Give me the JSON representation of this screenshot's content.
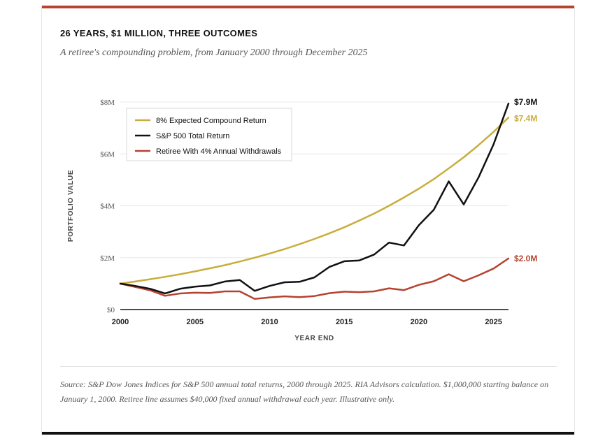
{
  "header": {
    "title": "26 YEARS, $1 MILLION, THREE OUTCOMES",
    "subtitle": "A retiree's compounding problem, from January 2000 through December 2025"
  },
  "footer": {
    "source": "Source: S&P Dow Jones Indices for S&P 500 annual total returns, 2000 through 2025. RIA Advisors calculation. $1,000,000 starting balance on January 1, 2000. Retiree line assumes $40,000 fixed annual withdrawal each year. Illustrative only."
  },
  "chart_data": {
    "type": "line",
    "title": "26 YEARS, $1 MILLION, THREE OUTCOMES",
    "subtitle": "A retiree's compounding problem, from January 2000 through December 2025",
    "xlabel": "YEAR END",
    "ylabel": "PORTFOLIO VALUE",
    "xlim": [
      2000,
      2026
    ],
    "ylim": [
      0,
      8
    ],
    "x_ticks": [
      2000,
      2005,
      2010,
      2015,
      2020,
      2025
    ],
    "y_ticks": [
      {
        "value": 0,
        "label": "$0"
      },
      {
        "value": 2,
        "label": "$2M"
      },
      {
        "value": 4,
        "label": "$4M"
      },
      {
        "value": 6,
        "label": "$6M"
      },
      {
        "value": 8,
        "label": "$8M"
      }
    ],
    "grid": "horizontal",
    "legend_position": "top-left",
    "x": [
      2000,
      2001,
      2002,
      2003,
      2004,
      2005,
      2006,
      2007,
      2008,
      2009,
      2010,
      2011,
      2012,
      2013,
      2014,
      2015,
      2016,
      2017,
      2018,
      2019,
      2020,
      2021,
      2022,
      2023,
      2024,
      2025,
      2026
    ],
    "series": [
      {
        "name": "8% Expected Compound Return",
        "color": "#c9ad3c",
        "end_label": "$7.4M",
        "values": [
          1.0,
          1.08,
          1.17,
          1.26,
          1.36,
          1.47,
          1.59,
          1.71,
          1.85,
          2.0,
          2.16,
          2.33,
          2.52,
          2.72,
          2.94,
          3.17,
          3.43,
          3.7,
          4.0,
          4.32,
          4.66,
          5.03,
          5.44,
          5.87,
          6.34,
          6.85,
          7.4
        ]
      },
      {
        "name": "S&P 500 Total Return",
        "color": "#111111",
        "end_label": "$7.9M",
        "values": [
          1.0,
          0.91,
          0.8,
          0.62,
          0.8,
          0.88,
          0.93,
          1.08,
          1.14,
          0.72,
          0.91,
          1.05,
          1.07,
          1.24,
          1.64,
          1.86,
          1.89,
          2.12,
          2.58,
          2.47,
          3.25,
          3.85,
          4.94,
          4.05,
          5.1,
          6.37,
          7.94
        ]
      },
      {
        "name": "Retiree With 4% Annual Withdrawals",
        "color": "#b5432f",
        "end_label": "$2.0M",
        "values": [
          1.0,
          0.87,
          0.74,
          0.53,
          0.62,
          0.65,
          0.64,
          0.7,
          0.7,
          0.41,
          0.47,
          0.51,
          0.48,
          0.52,
          0.63,
          0.69,
          0.67,
          0.7,
          0.82,
          0.75,
          0.95,
          1.09,
          1.36,
          1.09,
          1.32,
          1.58,
          1.97
        ]
      }
    ]
  }
}
